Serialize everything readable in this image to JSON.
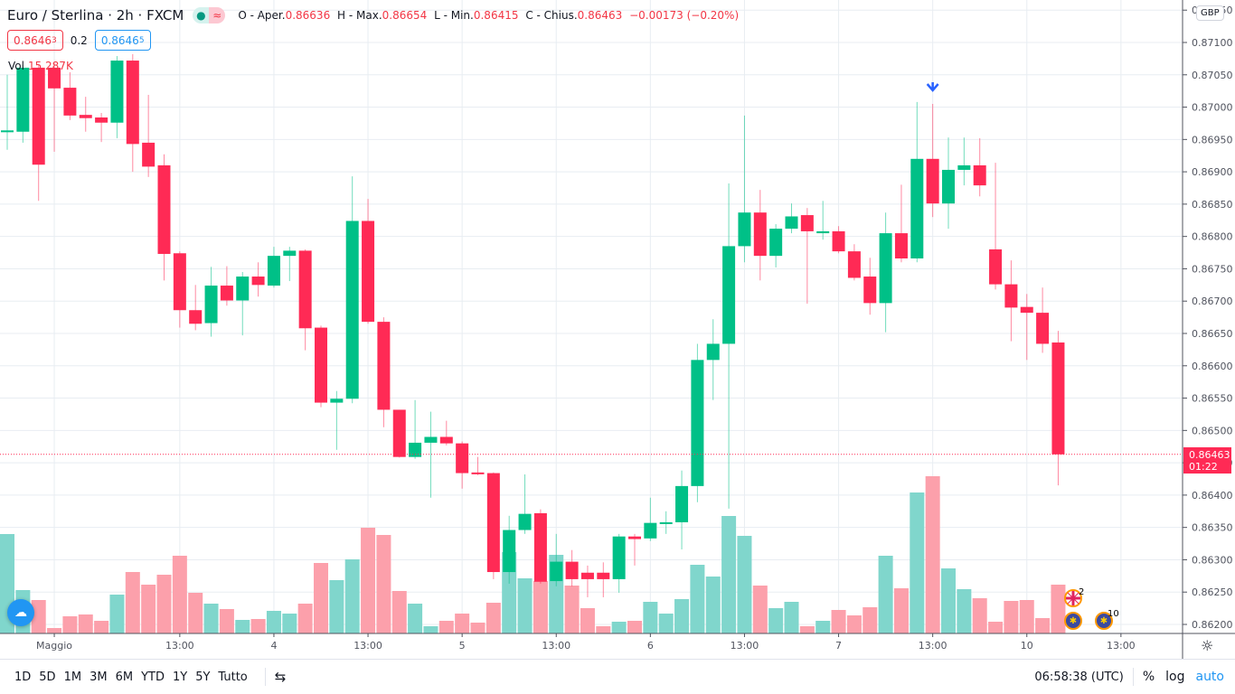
{
  "header": {
    "title": "Euro / Sterlina · 2h · FXCM",
    "pill": {
      "dot": "●",
      "wave": "≈"
    },
    "ohlc": {
      "open_label": "O - Aper.",
      "open": "0.86636",
      "high_label": "H - Max.",
      "high": "0.86654",
      "low_label": "L - Min.",
      "low": "0.86415",
      "close_label": "C - Chius.",
      "close": "0.86463",
      "change": "−0.00173 (−0.20%)"
    }
  },
  "quotes": {
    "bid": "0.8646",
    "bid_sup": "3",
    "spread": "0.2",
    "ask": "0.8646",
    "ask_sup": "5"
  },
  "volume": {
    "label": "Vol",
    "value": "15.287K"
  },
  "price_axis": {
    "currency": "GBP",
    "ticks": [
      "0.87150",
      "0.87100",
      "0.87050",
      "0.87000",
      "0.86950",
      "0.86900",
      "0.86850",
      "0.86800",
      "0.86750",
      "0.86700",
      "0.86650",
      "0.86600",
      "0.86550",
      "0.86500",
      "0.86450",
      "0.86400",
      "0.86350",
      "0.86300",
      "0.86250",
      "0.86200"
    ],
    "last_price": "0.86463",
    "countdown": "01:22"
  },
  "time_axis": {
    "labels": [
      {
        "i": 3,
        "t": "Maggio"
      },
      {
        "i": 11,
        "t": "13:00"
      },
      {
        "i": 17,
        "t": "4"
      },
      {
        "i": 23,
        "t": "13:00"
      },
      {
        "i": 29,
        "t": "5"
      },
      {
        "i": 35,
        "t": "13:00"
      },
      {
        "i": 41,
        "t": "6"
      },
      {
        "i": 47,
        "t": "13:00"
      },
      {
        "i": 53,
        "t": "7"
      },
      {
        "i": 59,
        "t": "13:00"
      },
      {
        "i": 65,
        "t": "10"
      },
      {
        "i": 71,
        "t": "13:00"
      }
    ]
  },
  "colors": {
    "up": "#00c087",
    "down": "#ff2a55",
    "vol_up": "#80d6cc",
    "vol_down": "#fca0ab",
    "accent": "#2196f3"
  },
  "events": [
    {
      "icon": "uk-flag",
      "count": "2"
    },
    {
      "icon": "eu-flag",
      "count": ""
    },
    {
      "icon": "eu-flag",
      "count": "10"
    }
  ],
  "marker": {
    "icon": "arrow-down",
    "candle": 59
  },
  "chart_data": {
    "type": "candlestick",
    "symbol": "EURGBP",
    "interval": "2h",
    "ylim": [
      0.8619,
      0.8716
    ],
    "ohlc": [
      [
        0.86962,
        0.8705,
        0.86934,
        0.86964
      ],
      [
        0.86962,
        0.87065,
        0.86945,
        0.87061
      ],
      [
        0.87061,
        0.87065,
        0.86855,
        0.86911
      ],
      [
        0.87061,
        0.87068,
        0.86931,
        0.87029
      ],
      [
        0.8703,
        0.87054,
        0.8698,
        0.86987
      ],
      [
        0.86988,
        0.87016,
        0.86962,
        0.86983
      ],
      [
        0.86984,
        0.86991,
        0.86946,
        0.86976
      ],
      [
        0.86976,
        0.87079,
        0.86952,
        0.87072
      ],
      [
        0.87072,
        0.87082,
        0.869,
        0.86943
      ],
      [
        0.86945,
        0.87019,
        0.86892,
        0.86908
      ],
      [
        0.8691,
        0.86927,
        0.86732,
        0.86773
      ],
      [
        0.86774,
        0.86777,
        0.86659,
        0.86686
      ],
      [
        0.86686,
        0.86725,
        0.86655,
        0.86665
      ],
      [
        0.86666,
        0.86753,
        0.86645,
        0.86724
      ],
      [
        0.86724,
        0.86754,
        0.86693,
        0.86701
      ],
      [
        0.86701,
        0.86745,
        0.86647,
        0.86738
      ],
      [
        0.86738,
        0.8676,
        0.86707,
        0.86725
      ],
      [
        0.86724,
        0.86784,
        0.86721,
        0.8677
      ],
      [
        0.8677,
        0.86784,
        0.86731,
        0.86778
      ],
      [
        0.86778,
        0.8678,
        0.86624,
        0.86658
      ],
      [
        0.86659,
        0.86662,
        0.86536,
        0.86543
      ],
      [
        0.86543,
        0.86561,
        0.8647,
        0.86549
      ],
      [
        0.86549,
        0.86893,
        0.86542,
        0.86824
      ],
      [
        0.86824,
        0.86858,
        0.86665,
        0.86668
      ],
      [
        0.86668,
        0.86675,
        0.86505,
        0.86532
      ],
      [
        0.86532,
        0.86532,
        0.86458,
        0.86459
      ],
      [
        0.86459,
        0.86547,
        0.86456,
        0.86481
      ],
      [
        0.86481,
        0.86529,
        0.86396,
        0.8649
      ],
      [
        0.8649,
        0.86515,
        0.86477,
        0.8648
      ],
      [
        0.8648,
        0.86483,
        0.8641,
        0.86434
      ],
      [
        0.86435,
        0.86459,
        0.86431,
        0.86434
      ],
      [
        0.86434,
        0.86435,
        0.8627,
        0.86281
      ],
      [
        0.86281,
        0.86368,
        0.86263,
        0.86346
      ],
      [
        0.86346,
        0.86432,
        0.8634,
        0.86371
      ],
      [
        0.86372,
        0.86378,
        0.86263,
        0.86266
      ],
      [
        0.86267,
        0.8634,
        0.86259,
        0.86297
      ],
      [
        0.86297,
        0.86315,
        0.86259,
        0.8627
      ],
      [
        0.8628,
        0.86291,
        0.86242,
        0.8627
      ],
      [
        0.8628,
        0.86296,
        0.86242,
        0.8627
      ],
      [
        0.8627,
        0.8634,
        0.86249,
        0.86336
      ],
      [
        0.86336,
        0.8634,
        0.86291,
        0.86332
      ],
      [
        0.86333,
        0.86396,
        0.86329,
        0.86357
      ],
      [
        0.86357,
        0.86375,
        0.8634,
        0.86358
      ],
      [
        0.86358,
        0.86438,
        0.86316,
        0.86414
      ],
      [
        0.86414,
        0.86634,
        0.86389,
        0.86609
      ],
      [
        0.86609,
        0.86672,
        0.86547,
        0.86634
      ],
      [
        0.86634,
        0.86882,
        0.86379,
        0.86785
      ],
      [
        0.86785,
        0.86987,
        0.8676,
        0.86837
      ],
      [
        0.86837,
        0.86872,
        0.86732,
        0.8677
      ],
      [
        0.8677,
        0.86819,
        0.86752,
        0.86812
      ],
      [
        0.86812,
        0.86851,
        0.86805,
        0.86831
      ],
      [
        0.86833,
        0.86844,
        0.86696,
        0.86808
      ],
      [
        0.86805,
        0.86855,
        0.86795,
        0.86808
      ],
      [
        0.86808,
        0.86816,
        0.86774,
        0.86777
      ],
      [
        0.86777,
        0.86788,
        0.86732,
        0.86736
      ],
      [
        0.86738,
        0.86767,
        0.86679,
        0.86697
      ],
      [
        0.86697,
        0.86837,
        0.86652,
        0.86805
      ],
      [
        0.86805,
        0.8688,
        0.8676,
        0.86766
      ],
      [
        0.86766,
        0.87008,
        0.8676,
        0.8692
      ],
      [
        0.8692,
        0.87005,
        0.8683,
        0.86851
      ],
      [
        0.86851,
        0.86953,
        0.86812,
        0.86903
      ],
      [
        0.86903,
        0.86953,
        0.86879,
        0.8691
      ],
      [
        0.8691,
        0.86952,
        0.86862,
        0.86879
      ],
      [
        0.8678,
        0.86914,
        0.86718,
        0.86726
      ],
      [
        0.86726,
        0.86763,
        0.86638,
        0.8669
      ],
      [
        0.86691,
        0.86711,
        0.86609,
        0.86682
      ],
      [
        0.86682,
        0.86721,
        0.8662,
        0.86634
      ],
      [
        0.86636,
        0.86654,
        0.86415,
        0.86463
      ]
    ],
    "volume": [
      31130,
      13584,
      10471,
      1698,
      5377,
      5943,
      3962,
      12169,
      19244,
      15282,
      18395,
      24338,
      12735,
      9339,
      7641,
      4245,
      4528,
      7075,
      6226,
      9339,
      22074,
      16697,
      23206,
      33111,
      30847,
      13301,
      9339,
      2264,
      3962,
      6226,
      3396,
      9622,
      25470,
      17263,
      16414,
      24621,
      14999,
      7924,
      2264,
      3679,
      3962,
      9905,
      6226,
      10754,
      21508,
      17829,
      36790,
      30564,
      14999,
      7924,
      9905,
      2264,
      3962,
      7358,
      5660,
      8207,
      24338,
      14150,
      44148,
      49242,
      20376,
      13867,
      11037,
      3679,
      10188,
      10471,
      4811,
      15287
    ]
  },
  "bottom_bar": {
    "ranges": [
      "1D",
      "5D",
      "1M",
      "3M",
      "6M",
      "YTD",
      "1Y",
      "5Y",
      "Tutto"
    ],
    "clock": "06:58:38 (UTC)",
    "percent": "%",
    "log": "log",
    "auto": "auto"
  }
}
